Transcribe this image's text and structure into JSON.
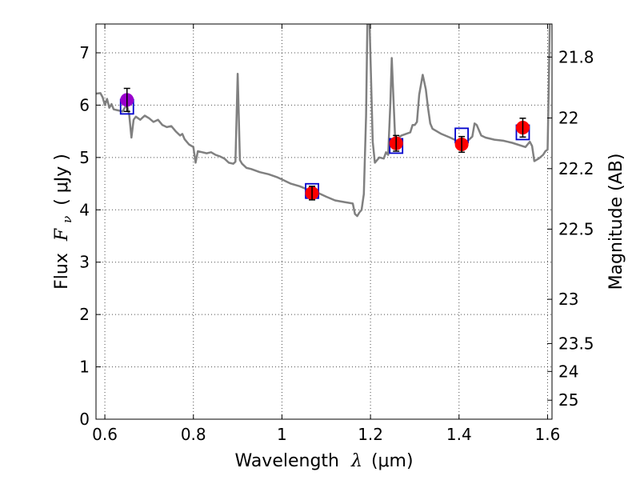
{
  "chart_data": {
    "type": "line",
    "title": "",
    "xlabel": {
      "prefix": "Wavelength",
      "symbol": "λ",
      "unit": "(μm)"
    },
    "ylabel": {
      "prefix": "Flux",
      "symbol": "F",
      "subscript": "ν",
      "unit": "( μJy )"
    },
    "y2label": "Magnitude (AB)",
    "xlim": [
      0.58,
      1.61
    ],
    "ylim": [
      0,
      7.55
    ],
    "grid": true,
    "x_ticks": [
      0.6,
      0.8,
      1.0,
      1.2,
      1.4,
      1.6
    ],
    "x_tick_labels": [
      "0.6",
      "0.8",
      "1",
      "1.2",
      "1.4",
      "1.6"
    ],
    "y_ticks": [
      0,
      1,
      2,
      3,
      4,
      5,
      6,
      7
    ],
    "y_tick_labels": [
      "0",
      "1",
      "2",
      "3",
      "4",
      "5",
      "6",
      "7"
    ],
    "y2_ticks": [
      21.8,
      22.0,
      22.2,
      22.5,
      23.0,
      23.5,
      24.0,
      25.0
    ],
    "y2_tick_labels": [
      "21.8",
      "22",
      "22.2",
      "22.5",
      "23",
      "23.5",
      "24",
      "25"
    ],
    "colors": {
      "model": "#808080",
      "observed_red": "#ff0000",
      "observed_purple": "#9900cc",
      "model_box": "#0000cc",
      "errorbar": "#000000"
    },
    "series": [
      {
        "kind": "model_spectrum",
        "points": [
          [
            0.58,
            6.22
          ],
          [
            0.59,
            6.23
          ],
          [
            0.595,
            6.15
          ],
          [
            0.6,
            6.0
          ],
          [
            0.605,
            6.12
          ],
          [
            0.61,
            5.95
          ],
          [
            0.615,
            6.02
          ],
          [
            0.62,
            5.92
          ],
          [
            0.63,
            5.9
          ],
          [
            0.64,
            5.88
          ],
          [
            0.645,
            5.95
          ],
          [
            0.65,
            6.0
          ],
          [
            0.655,
            5.82
          ],
          [
            0.66,
            5.38
          ],
          [
            0.665,
            5.72
          ],
          [
            0.67,
            5.78
          ],
          [
            0.68,
            5.72
          ],
          [
            0.69,
            5.8
          ],
          [
            0.7,
            5.75
          ],
          [
            0.71,
            5.68
          ],
          [
            0.72,
            5.72
          ],
          [
            0.73,
            5.62
          ],
          [
            0.74,
            5.58
          ],
          [
            0.75,
            5.6
          ],
          [
            0.76,
            5.5
          ],
          [
            0.77,
            5.42
          ],
          [
            0.775,
            5.45
          ],
          [
            0.78,
            5.35
          ],
          [
            0.79,
            5.25
          ],
          [
            0.8,
            5.2
          ],
          [
            0.805,
            4.9
          ],
          [
            0.81,
            5.12
          ],
          [
            0.82,
            5.1
          ],
          [
            0.83,
            5.08
          ],
          [
            0.84,
            5.1
          ],
          [
            0.85,
            5.05
          ],
          [
            0.86,
            5.02
          ],
          [
            0.87,
            4.98
          ],
          [
            0.88,
            4.9
          ],
          [
            0.89,
            4.88
          ],
          [
            0.895,
            4.92
          ],
          [
            0.9,
            6.6
          ],
          [
            0.905,
            4.95
          ],
          [
            0.91,
            4.88
          ],
          [
            0.92,
            4.8
          ],
          [
            0.93,
            4.78
          ],
          [
            0.95,
            4.72
          ],
          [
            0.97,
            4.68
          ],
          [
            0.99,
            4.62
          ],
          [
            1.0,
            4.58
          ],
          [
            1.02,
            4.5
          ],
          [
            1.04,
            4.45
          ],
          [
            1.06,
            4.38
          ],
          [
            1.08,
            4.33
          ],
          [
            1.1,
            4.25
          ],
          [
            1.12,
            4.18
          ],
          [
            1.14,
            4.15
          ],
          [
            1.16,
            4.12
          ],
          [
            1.165,
            3.92
          ],
          [
            1.17,
            3.88
          ],
          [
            1.175,
            3.95
          ],
          [
            1.18,
            4.0
          ],
          [
            1.185,
            4.3
          ],
          [
            1.19,
            5.8
          ],
          [
            1.193,
            7.55
          ],
          [
            1.198,
            7.55
          ],
          [
            1.205,
            5.3
          ],
          [
            1.21,
            4.9
          ],
          [
            1.215,
            4.95
          ],
          [
            1.22,
            5.0
          ],
          [
            1.23,
            4.98
          ],
          [
            1.235,
            5.1
          ],
          [
            1.24,
            5.05
          ],
          [
            1.245,
            6.05
          ],
          [
            1.248,
            6.9
          ],
          [
            1.252,
            6.1
          ],
          [
            1.256,
            5.3
          ],
          [
            1.26,
            5.35
          ],
          [
            1.27,
            5.42
          ],
          [
            1.28,
            5.45
          ],
          [
            1.29,
            5.48
          ],
          [
            1.295,
            5.62
          ],
          [
            1.3,
            5.62
          ],
          [
            1.305,
            5.68
          ],
          [
            1.31,
            6.2
          ],
          [
            1.318,
            6.58
          ],
          [
            1.325,
            6.3
          ],
          [
            1.33,
            5.95
          ],
          [
            1.335,
            5.65
          ],
          [
            1.34,
            5.55
          ],
          [
            1.36,
            5.45
          ],
          [
            1.38,
            5.38
          ],
          [
            1.4,
            5.3
          ],
          [
            1.42,
            5.32
          ],
          [
            1.43,
            5.4
          ],
          [
            1.435,
            5.65
          ],
          [
            1.44,
            5.62
          ],
          [
            1.45,
            5.42
          ],
          [
            1.46,
            5.38
          ],
          [
            1.48,
            5.34
          ],
          [
            1.5,
            5.32
          ],
          [
            1.52,
            5.28
          ],
          [
            1.55,
            5.2
          ],
          [
            1.56,
            5.3
          ],
          [
            1.565,
            5.22
          ],
          [
            1.57,
            4.93
          ],
          [
            1.58,
            4.98
          ],
          [
            1.59,
            5.05
          ],
          [
            1.595,
            5.12
          ],
          [
            1.6,
            5.15
          ],
          [
            1.603,
            6.5
          ],
          [
            1.605,
            7.55
          ]
        ]
      },
      {
        "kind": "model_photometry",
        "points": [
          [
            0.65,
            5.97
          ],
          [
            1.068,
            4.36
          ],
          [
            1.258,
            5.22
          ],
          [
            1.406,
            5.42
          ],
          [
            1.544,
            5.48
          ]
        ]
      },
      {
        "kind": "observed_photometry",
        "points": [
          {
            "x": 0.65,
            "y": 6.1,
            "err": 0.22,
            "color": "purple"
          },
          {
            "x": 1.068,
            "y": 4.32,
            "err": 0.13,
            "color": "red"
          },
          {
            "x": 1.258,
            "y": 5.27,
            "err": 0.15,
            "color": "red"
          },
          {
            "x": 1.406,
            "y": 5.25,
            "err": 0.15,
            "color": "red"
          },
          {
            "x": 1.544,
            "y": 5.57,
            "err": 0.18,
            "color": "red"
          }
        ]
      }
    ]
  }
}
